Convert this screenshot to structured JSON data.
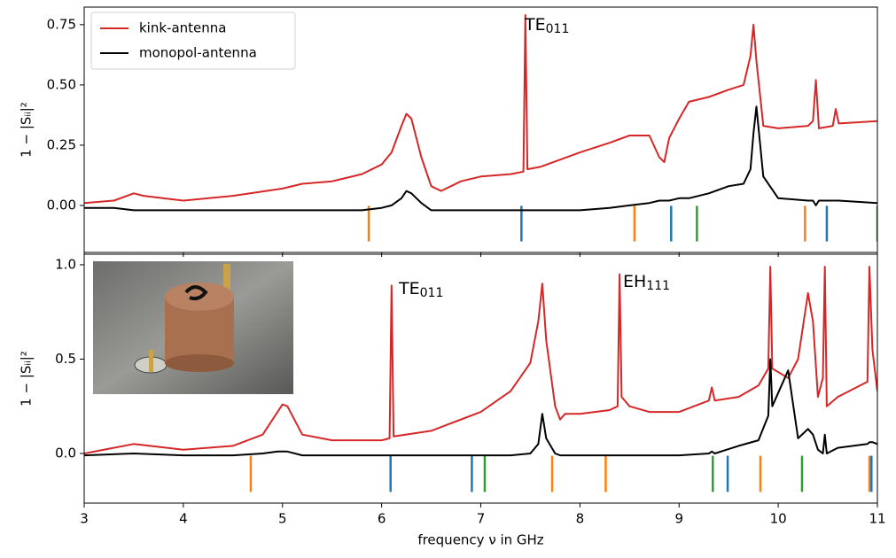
{
  "chart_data": [
    {
      "type": "line",
      "x": [
        3.0,
        3.3,
        3.5,
        3.6,
        4.0,
        4.5,
        5.0,
        5.2,
        5.5,
        5.8,
        6.0,
        6.1,
        6.2,
        6.25,
        6.3,
        6.4,
        6.5,
        6.6,
        6.8,
        7.0,
        7.3,
        7.43,
        7.45,
        7.47,
        7.6,
        8.0,
        8.3,
        8.5,
        8.7,
        8.8,
        8.85,
        8.9,
        9.0,
        9.1,
        9.3,
        9.5,
        9.65,
        9.72,
        9.75,
        9.78,
        9.85,
        10.0,
        10.3,
        10.35,
        10.38,
        10.41,
        10.55,
        10.58,
        10.61,
        11.0
      ],
      "series": [
        {
          "name": "kink-antenna",
          "color": "#d62728",
          "values": [
            0.01,
            0.02,
            0.05,
            0.04,
            0.02,
            0.04,
            0.07,
            0.09,
            0.1,
            0.13,
            0.17,
            0.22,
            0.33,
            0.38,
            0.36,
            0.2,
            0.08,
            0.06,
            0.1,
            0.12,
            0.13,
            0.14,
            0.79,
            0.15,
            0.16,
            0.22,
            0.26,
            0.29,
            0.29,
            0.2,
            0.18,
            0.28,
            0.36,
            0.43,
            0.45,
            0.48,
            0.5,
            0.62,
            0.75,
            0.6,
            0.33,
            0.32,
            0.33,
            0.35,
            0.52,
            0.32,
            0.33,
            0.4,
            0.34,
            0.35
          ]
        },
        {
          "name": "monopol-antenna",
          "color": "#000000",
          "values": [
            -0.01,
            -0.01,
            -0.02,
            -0.02,
            -0.02,
            -0.02,
            -0.02,
            -0.02,
            -0.02,
            -0.02,
            -0.01,
            0.0,
            0.03,
            0.06,
            0.05,
            0.01,
            -0.02,
            -0.02,
            -0.02,
            -0.02,
            -0.02,
            -0.02,
            -0.02,
            -0.02,
            -0.02,
            -0.02,
            -0.01,
            0.0,
            0.01,
            0.02,
            0.02,
            0.02,
            0.03,
            0.03,
            0.05,
            0.08,
            0.09,
            0.15,
            0.3,
            0.41,
            0.12,
            0.03,
            0.02,
            0.02,
            0.0,
            0.02,
            0.02,
            0.02,
            0.02,
            0.01
          ]
        }
      ],
      "markers": [
        {
          "color": "#ff7f0e",
          "x": [
            5.87,
            8.55,
            10.27
          ]
        },
        {
          "color": "#1f77b4",
          "x": [
            7.41,
            8.92,
            10.49
          ]
        },
        {
          "color": "#2ca02c",
          "x": [
            9.18,
            11.0
          ]
        }
      ],
      "annotations": [
        {
          "text": "TE",
          "sub": "011"
        }
      ],
      "ylabel": "1 − |Sᵢᵢ|²",
      "xlim": [
        3,
        11
      ],
      "ylim": [
        -0.195,
        0.823
      ],
      "yticks": [
        {
          "value": 0,
          "label": "0.00"
        },
        {
          "value": 0.25,
          "label": "0.25"
        },
        {
          "value": 0.5,
          "label": "0.50"
        },
        {
          "value": 0.75,
          "label": "0.75"
        }
      ],
      "legend": "upper left"
    },
    {
      "type": "line",
      "x": [
        3.0,
        3.5,
        4.0,
        4.5,
        4.8,
        4.95,
        5.0,
        5.05,
        5.2,
        5.5,
        6.0,
        6.08,
        6.1,
        6.12,
        6.5,
        7.0,
        7.3,
        7.5,
        7.58,
        7.62,
        7.66,
        7.75,
        7.8,
        7.85,
        8.0,
        8.3,
        8.38,
        8.4,
        8.42,
        8.5,
        8.7,
        9.0,
        9.3,
        9.33,
        9.36,
        9.6,
        9.8,
        9.9,
        9.92,
        9.94,
        10.1,
        10.2,
        10.3,
        10.35,
        10.4,
        10.45,
        10.47,
        10.49,
        10.6,
        10.9,
        10.92,
        10.95,
        11.0
      ],
      "series": [
        {
          "color": "#d62728",
          "values": [
            0.0,
            0.05,
            0.02,
            0.04,
            0.1,
            0.22,
            0.26,
            0.25,
            0.1,
            0.07,
            0.07,
            0.08,
            0.89,
            0.09,
            0.12,
            0.22,
            0.33,
            0.48,
            0.7,
            0.9,
            0.6,
            0.25,
            0.18,
            0.21,
            0.21,
            0.23,
            0.25,
            0.95,
            0.3,
            0.25,
            0.22,
            0.22,
            0.28,
            0.35,
            0.28,
            0.3,
            0.36,
            0.45,
            0.99,
            0.45,
            0.4,
            0.5,
            0.85,
            0.7,
            0.3,
            0.4,
            0.99,
            0.25,
            0.3,
            0.38,
            0.99,
            0.55,
            0.33
          ]
        },
        {
          "color": "#000000",
          "values": [
            -0.01,
            0.0,
            -0.01,
            -0.01,
            0.0,
            0.01,
            0.01,
            0.01,
            -0.01,
            -0.01,
            -0.01,
            -0.01,
            -0.01,
            -0.01,
            -0.01,
            -0.01,
            -0.01,
            0.0,
            0.05,
            0.21,
            0.08,
            0.0,
            -0.01,
            -0.01,
            -0.01,
            -0.01,
            -0.01,
            -0.01,
            -0.01,
            -0.01,
            -0.01,
            -0.01,
            0.0,
            0.01,
            0.0,
            0.04,
            0.07,
            0.2,
            0.5,
            0.25,
            0.44,
            0.08,
            0.13,
            0.1,
            0.02,
            0.0,
            0.1,
            0.0,
            0.03,
            0.05,
            0.06,
            0.06,
            0.05
          ]
        }
      ],
      "markers": [
        {
          "color": "#ff7f0e",
          "x": [
            4.68,
            7.72,
            8.26,
            9.82,
            10.92
          ]
        },
        {
          "color": "#1f77b4",
          "x": [
            6.09,
            6.91,
            9.49,
            10.94
          ]
        },
        {
          "color": "#2ca02c",
          "x": [
            7.04,
            9.34,
            10.24
          ]
        }
      ],
      "annotations": [
        {
          "text": "TE",
          "sub": "011"
        },
        {
          "text": "EH",
          "sub": "111"
        }
      ],
      "ylabel": "1 − |Sᵢᵢ|²",
      "xlabel": "frequency ν in GHz",
      "xlim": [
        3,
        11
      ],
      "xticks": [
        3,
        4,
        5,
        6,
        7,
        8,
        9,
        10,
        11
      ],
      "ylim": [
        -0.263,
        1.056
      ],
      "yticks": [
        {
          "value": 0,
          "label": "0.0"
        },
        {
          "value": 0.5,
          "label": "0.5"
        },
        {
          "value": 1,
          "label": "1.0"
        }
      ]
    }
  ]
}
